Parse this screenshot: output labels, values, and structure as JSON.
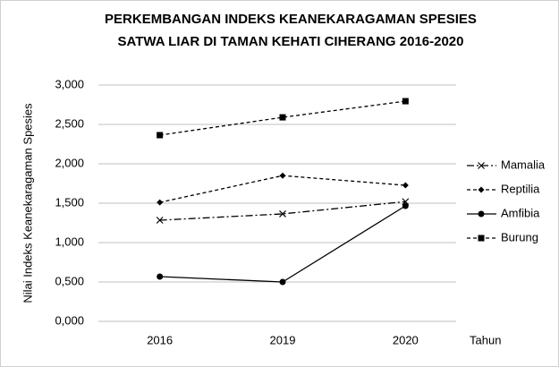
{
  "chart_data": {
    "type": "line",
    "title": [
      "PERKEMBANGAN INDEKS KEANEKARAGAMAN SPESIES",
      "SATWA LIAR DI TAMAN KEHATI CIHERANG 2016-2020"
    ],
    "y_label": "Nilai Indeks Keanekaragaman  Spesies",
    "x_label": "Tahun",
    "categories": [
      "2016",
      "2019",
      "2020"
    ],
    "series": [
      {
        "name": "Mamalia",
        "color": "#000000",
        "line_style": "dashdot",
        "marker": "x",
        "values": [
          1.284,
          1.364,
          1.52
        ]
      },
      {
        "name": "Reptilia",
        "color": "#000000",
        "line_style": "dashed",
        "marker": "diamond",
        "values": [
          1.51,
          1.85,
          1.727
        ]
      },
      {
        "name": "Amfibia",
        "color": "#000000",
        "line_style": "solid",
        "marker": "circle",
        "values": [
          0.568,
          0.5,
          1.466
        ]
      },
      {
        "name": "Burung",
        "color": "#000000",
        "line_style": "dashed",
        "marker": "square",
        "values": [
          2.364,
          2.59,
          2.795
        ]
      }
    ],
    "ylim": [
      0,
      3
    ],
    "yticks": [
      {
        "value": 0,
        "label": "0,000"
      },
      {
        "value": 0.5,
        "label": "0,500"
      },
      {
        "value": 1,
        "label": "1,000"
      },
      {
        "value": 1.5,
        "label": "1,500"
      },
      {
        "value": 2,
        "label": "2,000"
      },
      {
        "value": 2.5,
        "label": "2,500"
      },
      {
        "value": 3,
        "label": "3,000"
      }
    ],
    "grid": true,
    "legend": "right"
  }
}
